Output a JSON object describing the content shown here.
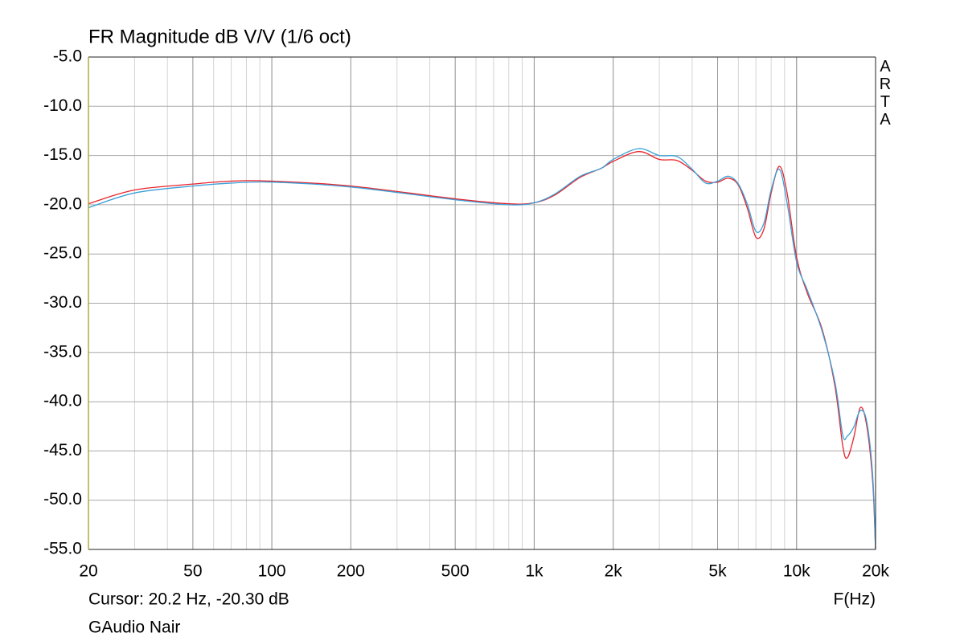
{
  "chart_data": {
    "type": "line",
    "title": "FR Magnitude dB V/V (1/6 oct)",
    "watermark": "ARTA",
    "cursor_text": "Cursor: 20.2 Hz, -20.30 dB",
    "x_label": "F(Hz)",
    "footer": "GAudio Nair",
    "log_x": true,
    "grid": true,
    "x": [
      20,
      30,
      50,
      70,
      100,
      200,
      500,
      800,
      1000,
      1200,
      1500,
      1800,
      2000,
      2500,
      3000,
      3500,
      4000,
      4500,
      5000,
      5500,
      6000,
      6500,
      7000,
      7500,
      8000,
      8600,
      9200,
      10000,
      11000,
      12500,
      14000,
      15000,
      15600,
      16500,
      17500,
      18500,
      19500,
      20000
    ],
    "series": [
      {
        "color": "#e8222a",
        "values": [
          -19.9,
          -18.5,
          -17.9,
          -17.6,
          -17.6,
          -18.1,
          -19.4,
          -19.9,
          -19.8,
          -19.0,
          -17.2,
          -16.3,
          -15.6,
          -14.6,
          -15.4,
          -15.5,
          -16.5,
          -17.6,
          -17.7,
          -17.3,
          -18.0,
          -20.4,
          -23.3,
          -22.5,
          -18.8,
          -16.1,
          -18.8,
          -25.3,
          -29.0,
          -32.6,
          -38.4,
          -44.5,
          -45.7,
          -43.7,
          -40.6,
          -42.4,
          -48.1,
          -55
        ]
      },
      {
        "color": "#3aa0d8",
        "values": [
          -20.3,
          -18.8,
          -18.1,
          -17.8,
          -17.7,
          -18.2,
          -19.5,
          -20.0,
          -19.8,
          -18.9,
          -17.1,
          -16.3,
          -15.4,
          -14.3,
          -15.0,
          -15.1,
          -16.4,
          -17.8,
          -17.6,
          -17.1,
          -17.9,
          -20.0,
          -22.7,
          -21.9,
          -18.5,
          -16.4,
          -19.8,
          -25.8,
          -28.7,
          -32.8,
          -38.0,
          -43.4,
          -43.5,
          -42.6,
          -40.9,
          -42.0,
          -47.5,
          -55
        ]
      }
    ],
    "xlim": [
      20,
      20000
    ],
    "xticks": [
      20,
      50,
      100,
      200,
      500,
      {
        "value": 1000,
        "label": "1k"
      },
      {
        "value": 2000,
        "label": "2k"
      },
      {
        "value": 5000,
        "label": "5k"
      },
      {
        "value": 10000,
        "label": "10k"
      },
      {
        "value": 20000,
        "label": "20k"
      }
    ],
    "ylim": [
      -55,
      -5
    ],
    "yticks": [
      {
        "value": -5,
        "label": "-5.0"
      },
      {
        "value": -10,
        "label": "-10.0"
      },
      {
        "value": -15,
        "label": "-15.0"
      },
      {
        "value": -20,
        "label": "-20.0"
      },
      {
        "value": -25,
        "label": "-25.0"
      },
      {
        "value": -30,
        "label": "-30.0"
      },
      {
        "value": -35,
        "label": "-35.0"
      },
      {
        "value": -40,
        "label": "-40.0"
      },
      {
        "value": -45,
        "label": "-45.0"
      },
      {
        "value": -50,
        "label": "-50.0"
      },
      {
        "value": -55,
        "label": "-55.0"
      }
    ]
  }
}
